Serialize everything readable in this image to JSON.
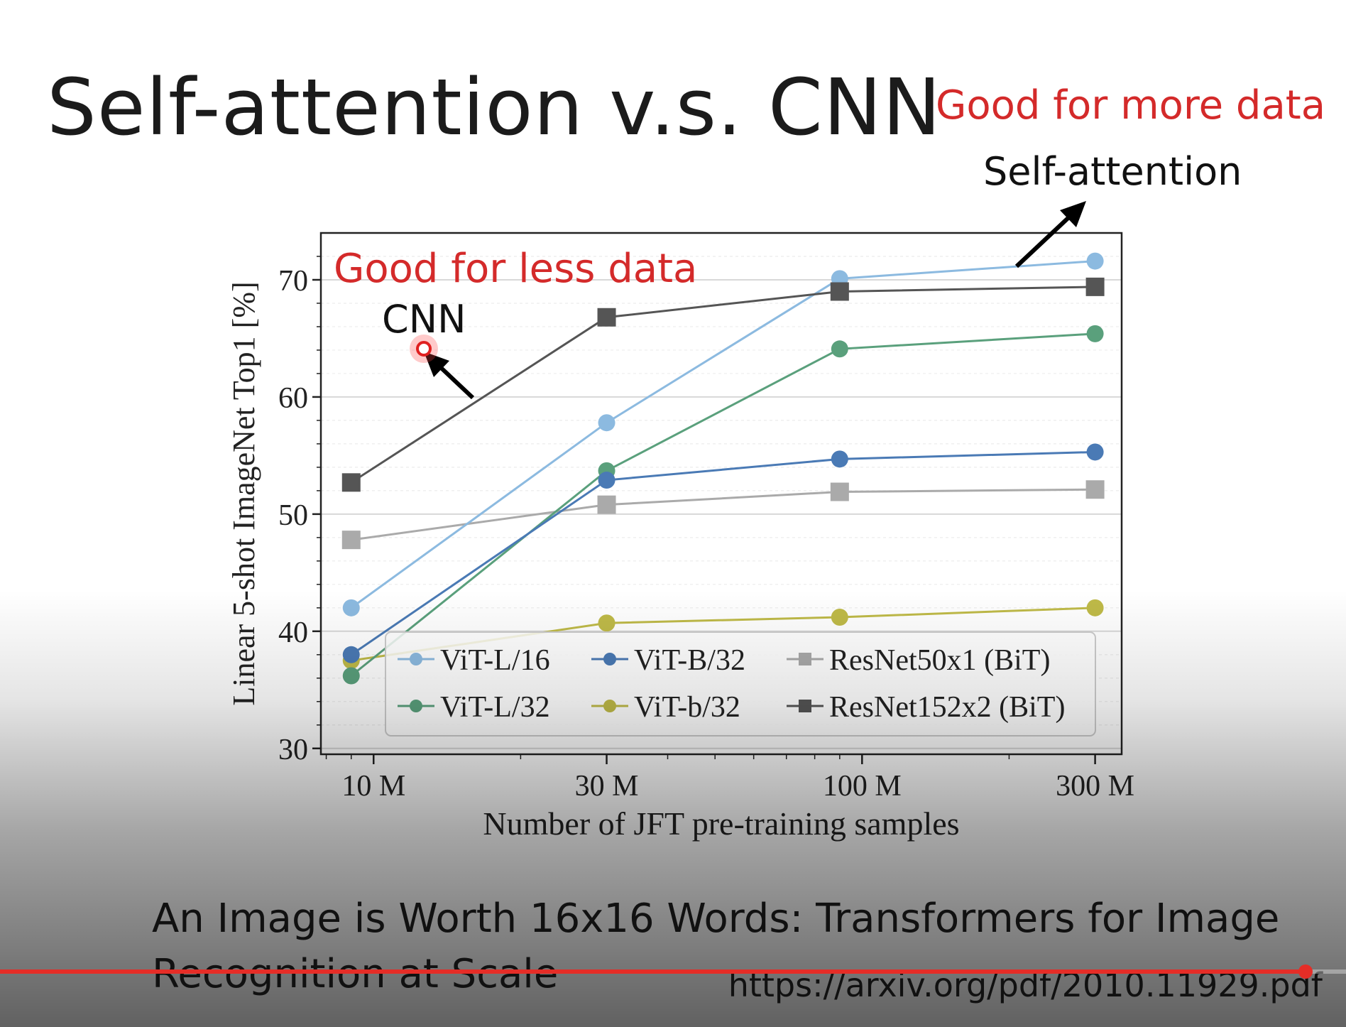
{
  "slide": {
    "title": "Self-attention v.s. CNN",
    "good_more": "Good for more data",
    "self_attention": "Self-attention",
    "good_less": "Good for less data",
    "cnn": "CNN",
    "paper_title": "An Image is Worth 16x16 Words: Transformers for Image Recognition at Scale",
    "url": "https://arxiv.org/pdf/2010.11929.pdf",
    "accent_color": "#d42a2a"
  },
  "player": {
    "progress_fraction": 0.97,
    "progress_color": "#e52d27"
  },
  "chart_data": {
    "type": "line",
    "xlabel": "Number of JFT pre-training samples",
    "ylabel": "Linear 5-shot ImageNet Top1 [%]",
    "x_scale": "log",
    "x": [
      9,
      30,
      90,
      300
    ],
    "xlim": [
      7.8,
      340
    ],
    "x_ticks": [
      10,
      30,
      100,
      300
    ],
    "x_tick_labels": [
      "10 M",
      "30 M",
      "100 M",
      "300 M"
    ],
    "ylim": [
      29.5,
      74
    ],
    "y_ticks": [
      30,
      40,
      50,
      60,
      70
    ],
    "y_tick_labels": [
      "30",
      "40",
      "50",
      "60",
      "70"
    ],
    "grid": true,
    "legend": "lower-right",
    "series": [
      {
        "name": "ViT-L/16",
        "values": [
          42,
          57.8,
          70.1,
          71.6
        ],
        "color": "#8cbae0",
        "marker": "circle"
      },
      {
        "name": "ViT-B/32",
        "values": [
          38,
          52.9,
          54.7,
          55.3
        ],
        "color": "#4a7ab5",
        "marker": "circle"
      },
      {
        "name": "ResNet50x1 (BiT)",
        "values": [
          47.8,
          50.8,
          51.9,
          52.1
        ],
        "color": "#aaaaaa",
        "marker": "square"
      },
      {
        "name": "ViT-L/32",
        "values": [
          36.2,
          53.7,
          64.1,
          65.4
        ],
        "color": "#5aa07c",
        "marker": "circle"
      },
      {
        "name": "ViT-b/32",
        "values": [
          37.5,
          40.7,
          41.2,
          42
        ],
        "color": "#bfba48",
        "marker": "circle"
      },
      {
        "name": "ResNet152x2 (BiT)",
        "values": [
          52.7,
          66.8,
          69,
          69.4
        ],
        "color": "#555555",
        "marker": "square"
      }
    ]
  }
}
